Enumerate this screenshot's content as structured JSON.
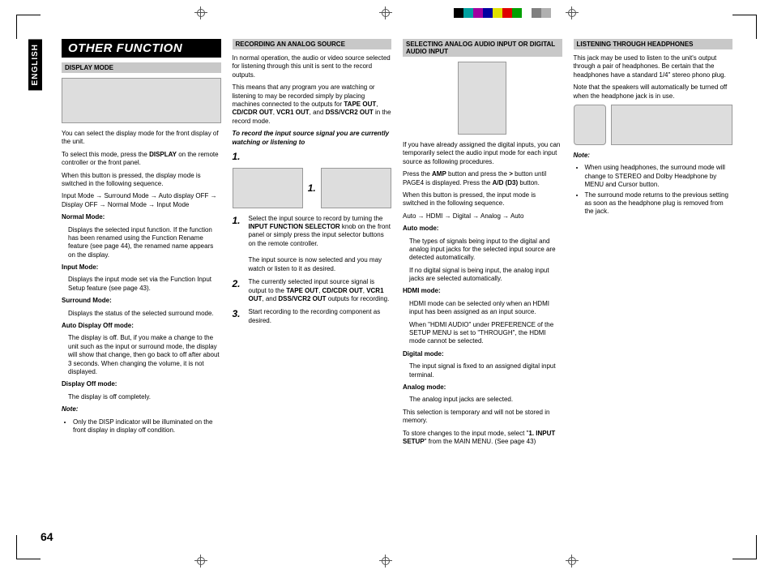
{
  "tab": "ENGLISH",
  "banner": "OTHER FUNCTION",
  "pagenum": "64",
  "colorbar": [
    "#000000",
    "#00a0a0",
    "#a000a0",
    "#0000a0",
    "#e0e000",
    "#e00000",
    "#00a000",
    "#ffffff",
    "#808080",
    "#b0b0b0"
  ],
  "col1": {
    "h1": "DISPLAY MODE",
    "p1": "You can select the display mode for the front display of the unit.",
    "p2a": "To select this mode, press the ",
    "p2b": "DISPLAY",
    "p2c": " on the remote controller or the front panel.",
    "p3": "When this button is pressed, the display mode is switched in the following sequence.",
    "p4": "Input Mode → Surround Mode → Auto display OFF → Display OFF → Normal Mode → Input Mode",
    "m1h": "Normal Mode:",
    "m1t": "Displays the selected input function. If the function has been renamed using the Function Rename feature (see page 44), the renamed name appears on the display.",
    "m2h": "Input Mode:",
    "m2t": "Displays the input mode set via the Function Input Setup feature (see page 43).",
    "m3h": "Surround Mode:",
    "m3t": "Displays the status of the selected surround mode.",
    "m4h": "Auto Display Off mode:",
    "m4t": "The display is off. But, if you make a change to the unit such as the input or surround mode, the display will show that change, then go back to off after about 3 seconds. When changing the volume, it is not displayed.",
    "m5h": "Display Off mode:",
    "m5t": "The display is off completely.",
    "noteH": "Note:",
    "note1": "Only the DISP indicator will be illuminated on the front display in display off condition."
  },
  "col2": {
    "h1": "RECORDING AN ANALOG SOURCE",
    "p1a": "In normal operation, the audio or video source selected for listening through this unit is sent to the record outputs.",
    "p1b_a": "This means that any program you are watching or listening to may be recorded simply by placing machines connected to the outputs for ",
    "p1b_b": "TAPE OUT",
    "p1b_c": ", ",
    "p1b_d": "CD/CDR OUT",
    "p1b_e": ", ",
    "p1b_f": "VCR1 OUT",
    "p1b_g": ", and ",
    "p1b_h": "DSS/VCR2 OUT",
    "p1b_i": " in the record mode.",
    "ital": "To record the input source signal you are currently watching or listening to",
    "s1": "1.",
    "s1lbl": "1.",
    "o1a": "Select the input source to record by turning the ",
    "o1b": "INPUT FUNCTION SELECTOR",
    "o1c": " knob on the front panel or simply press the input selector buttons on the remote controller.",
    "o1d": "The input source is now selected and you may watch or listen to it as desired.",
    "o2a": "The currently selected input source signal is output to the ",
    "o2b": "TAPE OUT",
    "o2c": ", ",
    "o2d": "CD/CDR OUT",
    "o2e": ", ",
    "o2f": "VCR1 OUT",
    "o2g": ", and ",
    "o2h": "DSS/VCR2 OUT",
    "o2i": " outputs for recording.",
    "o3": "Start recording to the recording component as desired."
  },
  "col3": {
    "h1": "SELECTING ANALOG AUDIO INPUT OR DIGITAL AUDIO INPUT",
    "p1": "If you have already assigned the digital inputs, you can temporarily select the audio input mode for each input source as following procedures.",
    "p2a": "Press the ",
    "p2b": "AMP",
    "p2c": " button and press the ",
    "p2d": ">",
    "p2e": " button until PAGE4 is displayed. Press the ",
    "p2f": "A/D (D3)",
    "p2g": " button.",
    "p3": "When this button is pressed, the input mode is switched in the following sequence.",
    "p4": "Auto → HDMI → Digital → Analog → Auto",
    "m1h": "Auto mode:",
    "m1t": "The types of signals being input to the digital and analog input jacks for the selected input source are detected automatically.",
    "m1t2": "If no digital signal is being input, the analog input jacks are selected automatically.",
    "m2h": "HDMI mode:",
    "m2t": "HDMI mode can be selected only when an HDMI input has been assigned as an input source.",
    "m2t2": "When \"HDMI AUDIO\" under PREFERENCE of the SETUP MENU is set to \"THROUGH\", the HDMI mode cannot be selected.",
    "m3h": "Digital mode:",
    "m3t": "The input signal is fixed to an assigned digital input terminal.",
    "m4h": "Analog mode:",
    "m4t": "The analog input jacks are selected.",
    "p5": "This selection is temporary and will not be stored in memory.",
    "p6a": "To store changes to the input mode, select \"",
    "p6b": "1. INPUT SETUP",
    "p6c": "\" from the MAIN MENU. (See page 43)"
  },
  "col4": {
    "h1": "LISTENING THROUGH HEADPHONES",
    "p1": "This jack may be used to listen to the unit's output through a pair of headphones. Be certain that the headphones have a standard 1/4\" stereo phono plug.",
    "p2": "Note that the speakers will automatically be turned off when the headphone jack is in use.",
    "noteH": "Note:",
    "n1": "When using headphones, the surround mode will change to STEREO and Dolby Headphone by MENU and Cursor button.",
    "n2": "The surround mode returns to the previous setting as soon as the headphone plug is removed from the jack."
  }
}
